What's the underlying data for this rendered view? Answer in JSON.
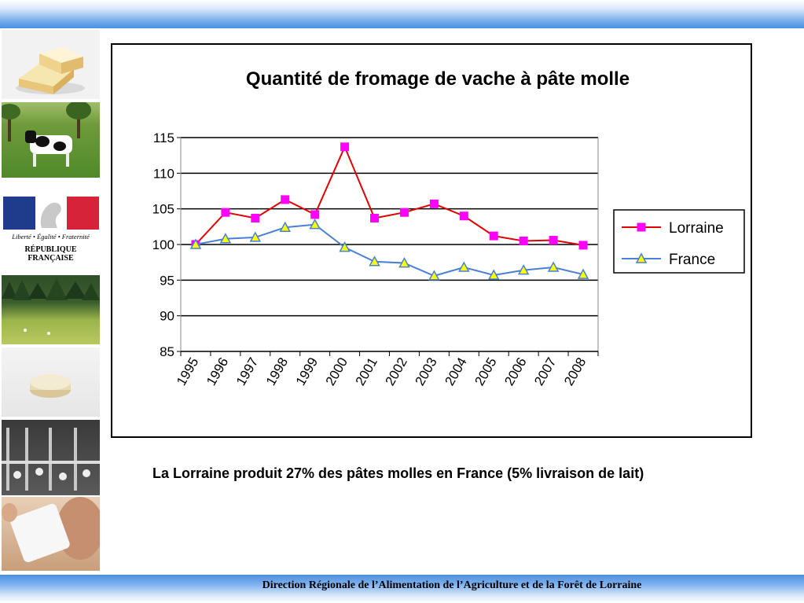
{
  "chart_data": {
    "type": "line",
    "title": "Quantité de fromage de vache à pâte molle",
    "xlabel": "",
    "ylabel": "",
    "categories": [
      "1995",
      "1996",
      "1997",
      "1998",
      "1999",
      "2000",
      "2001",
      "2002",
      "2003",
      "2004",
      "2005",
      "2006",
      "2007",
      "2008"
    ],
    "series": [
      {
        "name": "Lorraine",
        "color": "#e00000",
        "marker": "square",
        "marker_color": "#ff00ff",
        "values": [
          100.0,
          104.5,
          103.7,
          106.3,
          104.2,
          113.7,
          103.7,
          104.5,
          105.7,
          104.0,
          101.2,
          100.5,
          100.6,
          99.9
        ]
      },
      {
        "name": "France",
        "color": "#4a7fd6",
        "marker": "triangle",
        "marker_color": "#ffff00",
        "values": [
          100.0,
          100.8,
          101.0,
          102.4,
          102.8,
          99.6,
          97.6,
          97.4,
          95.6,
          96.8,
          95.7,
          96.4,
          96.8,
          95.8
        ]
      }
    ],
    "ylim": [
      85,
      115
    ],
    "yticks": [
      "85",
      "90",
      "95",
      "100",
      "105",
      "110",
      "115"
    ],
    "grid": true,
    "legend_position": "right"
  },
  "caption": "La Lorraine produit 27% des pâtes molles en France (5% livraison de lait)",
  "footer": "Direction Régionale de l’Alimentation de l’Agriculture et de la Forêt de Lorraine",
  "logo": {
    "motto": "Liberté • Égalité • Fraternité",
    "name": "RÉPUBLIQUE FRANÇAISE"
  },
  "colors": {
    "banner_blue": "#4a8fe0",
    "flag_blue": "#1f3c8c",
    "flag_red": "#d6233a"
  },
  "sidebar_images": [
    "cheese-wedge",
    "cows-in-orchard",
    "republique-francaise-logo",
    "forest-meadow",
    "round-cheese",
    "milking-parlor",
    "child-drinking-milk"
  ]
}
